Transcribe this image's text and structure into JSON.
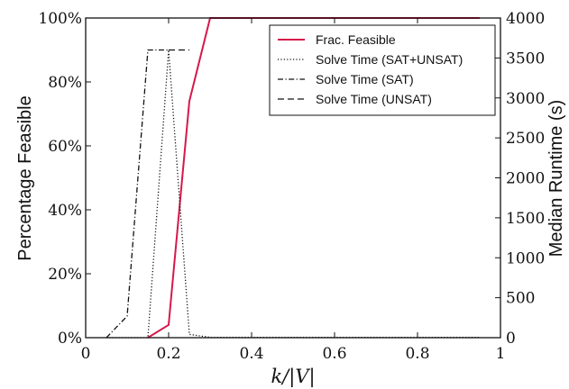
{
  "chart_data": {
    "type": "line",
    "xlabel": "k/|V|",
    "ylabel_left": "Percentage Feasible",
    "ylabel_right": "Median Runtime (s)",
    "xlim": [
      0,
      1
    ],
    "ylim_left": [
      0,
      100
    ],
    "ylim_right": [
      0,
      4000
    ],
    "grid": false,
    "legend_position": "top-right",
    "x_ticks": [
      {
        "value": 0,
        "label": "0"
      },
      {
        "value": 0.2,
        "label": "0.2"
      },
      {
        "value": 0.4,
        "label": "0.4"
      },
      {
        "value": 0.6,
        "label": "0.6"
      },
      {
        "value": 0.8,
        "label": "0.8"
      },
      {
        "value": 1,
        "label": "1"
      }
    ],
    "y_left_ticks": [
      {
        "value": 0,
        "label": "0%"
      },
      {
        "value": 20,
        "label": "20%"
      },
      {
        "value": 40,
        "label": "40%"
      },
      {
        "value": 60,
        "label": "60%"
      },
      {
        "value": 80,
        "label": "80%"
      },
      {
        "value": 100,
        "label": "100%"
      }
    ],
    "y_right_ticks": [
      {
        "value": 0,
        "label": "0"
      },
      {
        "value": 500,
        "label": "500"
      },
      {
        "value": 1000,
        "label": "1000"
      },
      {
        "value": 1500,
        "label": "1500"
      },
      {
        "value": 2000,
        "label": "2000"
      },
      {
        "value": 2500,
        "label": "2500"
      },
      {
        "value": 3000,
        "label": "3000"
      },
      {
        "value": 3500,
        "label": "3500"
      },
      {
        "value": 4000,
        "label": "4000"
      }
    ],
    "series": [
      {
        "name": "Frac. Feasible",
        "axis": "left",
        "color": "#d6184a",
        "style": "solid",
        "x": [
          0.15,
          0.2,
          0.25,
          0.3,
          0.35,
          0.4,
          0.45,
          0.5,
          0.55,
          0.6,
          0.65,
          0.7,
          0.75,
          0.8,
          0.85,
          0.9,
          0.95
        ],
        "y": [
          0,
          4,
          74,
          100,
          100,
          100,
          100,
          100,
          100,
          100,
          100,
          100,
          100,
          100,
          100,
          100,
          100
        ]
      },
      {
        "name": "Solve Time (SAT+UNSAT)",
        "axis": "right",
        "color": "#111111",
        "style": "dotted",
        "x": [
          0.05,
          0.1,
          0.15,
          0.2,
          0.25,
          0.3,
          0.35,
          0.4,
          0.45,
          0.5,
          0.55,
          0.6,
          0.65,
          0.7,
          0.75,
          0.8,
          0.85,
          0.9,
          0.95
        ],
        "y": [
          0,
          0,
          0,
          3600,
          40,
          5,
          3,
          3,
          3,
          3,
          3,
          3,
          3,
          3,
          3,
          3,
          3,
          3,
          3
        ]
      },
      {
        "name": "Solve Time (SAT)",
        "axis": "right",
        "color": "#111111",
        "style": "dashdot",
        "x": [
          0.05,
          0.1,
          0.15,
          0.2
        ],
        "y": [
          0,
          270,
          3600,
          3600
        ]
      },
      {
        "name": "Solve Time (UNSAT)",
        "axis": "right",
        "color": "#111111",
        "style": "dashed",
        "x": [
          0.2,
          0.25
        ],
        "y": [
          3600,
          3600
        ]
      }
    ]
  }
}
